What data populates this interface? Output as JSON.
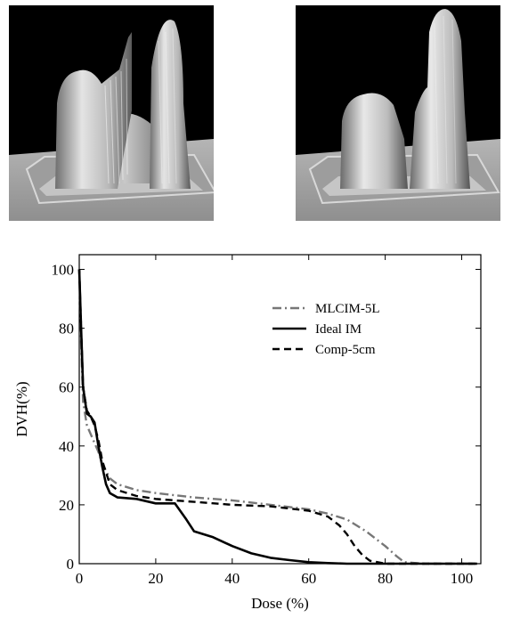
{
  "chart_data": {
    "type": "line",
    "title": "",
    "xlabel": "Dose (%)",
    "ylabel": "DVH(%)",
    "xlim": [
      0,
      105
    ],
    "ylim": [
      0,
      105
    ],
    "xticks": [
      0,
      20,
      40,
      60,
      80,
      100
    ],
    "yticks": [
      0,
      20,
      40,
      60,
      80,
      100
    ],
    "grid": false,
    "legend_position": "top-right",
    "series": [
      {
        "name": "MLCIM-5L",
        "line_style": "dash-dot",
        "color": "#777777",
        "x": [
          0,
          0.5,
          1,
          2,
          3,
          4,
          5,
          6,
          8,
          10,
          15,
          20,
          30,
          40,
          50,
          60,
          65,
          70,
          75,
          80,
          83,
          85,
          90,
          100,
          104
        ],
        "y": [
          100,
          75,
          55,
          47,
          44,
          41,
          38,
          34,
          29,
          27,
          25,
          24,
          22.5,
          21.5,
          20,
          18.5,
          17,
          15,
          11,
          6,
          2.5,
          0.5,
          0,
          0,
          0
        ]
      },
      {
        "name": "Ideal IM",
        "line_style": "solid",
        "color": "#000000",
        "x": [
          0,
          0.5,
          1,
          2,
          3,
          4,
          5,
          6,
          7,
          8,
          10,
          15,
          20,
          25,
          28,
          30,
          35,
          40,
          45,
          50,
          55,
          60,
          65,
          70,
          80,
          100,
          104
        ],
        "y": [
          100,
          80,
          60,
          51,
          50,
          48,
          40,
          33,
          27,
          24,
          22.5,
          22,
          20.5,
          20.5,
          15,
          11,
          9,
          6,
          3.5,
          2,
          1.2,
          0.5,
          0.2,
          0,
          0,
          0,
          0
        ]
      },
      {
        "name": "Comp-5cm",
        "line_style": "dashed",
        "color": "#000000",
        "x": [
          0,
          0.5,
          1,
          2,
          3,
          4,
          5,
          6,
          8,
          10,
          15,
          20,
          30,
          40,
          50,
          60,
          65,
          68,
          70,
          72,
          74,
          76,
          78,
          80,
          100,
          104
        ],
        "y": [
          100,
          80,
          60,
          52,
          50,
          47,
          42,
          35,
          27,
          25,
          23,
          22,
          21,
          20,
          19.5,
          18,
          16,
          13,
          10,
          6,
          3,
          1,
          0.5,
          0,
          0,
          0
        ]
      }
    ]
  },
  "panels": {
    "left": {
      "image": "3d-dose-surface-rendering",
      "background_color": "#000000"
    },
    "right": {
      "image": "3d-dose-surface-rendering",
      "background_color": "#000000"
    }
  }
}
